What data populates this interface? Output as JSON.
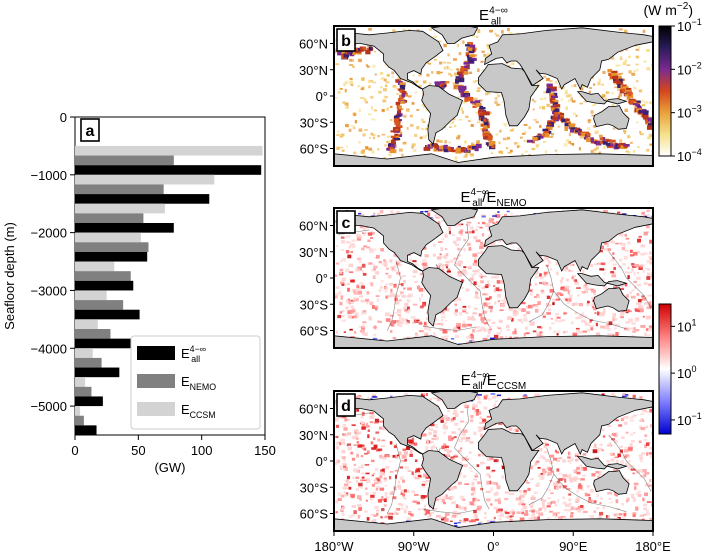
{
  "chart_data": [
    {
      "panel": "a",
      "type": "bar",
      "orientation": "horizontal",
      "xlabel": "(GW)",
      "ylabel": "Seafloor depth (m)",
      "xlim": [
        0,
        150
      ],
      "ylim": [
        -5500,
        0
      ],
      "x_ticks": [
        "0",
        "50",
        "100",
        "150"
      ],
      "x_tick_values": [
        0,
        50,
        100,
        150
      ],
      "y_ticks": [
        "0",
        "−1000",
        "−2000",
        "−3000",
        "−4000",
        "−5000"
      ],
      "y_tick_values": [
        0,
        -1000,
        -2000,
        -3000,
        -4000,
        -5000
      ],
      "depth_bins": [
        -750,
        -1250,
        -1750,
        -2250,
        -2750,
        -3250,
        -3750,
        -4250,
        -4750,
        -5250
      ],
      "series": [
        {
          "name": "E_all^4-∞",
          "label_main": "E",
          "label_sub": "all",
          "label_sup": "4−∞",
          "color": "#000000",
          "values": [
            147,
            106,
            78,
            57,
            46,
            51,
            44,
            35,
            22,
            17
          ]
        },
        {
          "name": "E_NEMO",
          "label_main": "E",
          "label_sub": "NEMO",
          "label_sup": "",
          "color": "#808080",
          "values": [
            78,
            70,
            54,
            58,
            44,
            38,
            28,
            21,
            13,
            7
          ]
        },
        {
          "name": "E_CCSM",
          "label_main": "E",
          "label_sub": "CCSM",
          "label_sup": "",
          "color": "#d3d3d3",
          "values": [
            148,
            110,
            71,
            52,
            31,
            25,
            18,
            14,
            8,
            4
          ]
        }
      ]
    },
    {
      "panel": "b",
      "type": "heatmap",
      "title_main": "E",
      "title_sub": "all",
      "title_sup": "4−∞",
      "colorbar_label": "(W m",
      "colorbar_label_sup": "−2",
      "colorbar_label_end": ")",
      "colorbar_scale": "log",
      "colorbar_range": [
        0.0001,
        0.1
      ],
      "colorbar_ticks": [
        {
          "base": "10",
          "exp": "−1"
        },
        {
          "base": "10",
          "exp": "−2"
        },
        {
          "base": "10",
          "exp": "−3"
        },
        {
          "base": "10",
          "exp": "−4"
        }
      ],
      "colormap": [
        "#ffffff",
        "#f6e08a",
        "#eaa23a",
        "#d4461c",
        "#7a2a90",
        "#2a1b5a",
        "#000000"
      ],
      "lat_ticks": [
        "60°N",
        "30°N",
        "0°",
        "30°S",
        "60°S"
      ]
    },
    {
      "panel": "c",
      "type": "heatmap",
      "title_main": "E",
      "title_sub": "all",
      "title_sup": "4−∞",
      "title_divisor_main": "E",
      "title_divisor_sub": "NEMO",
      "colorbar_scale": "log",
      "colorbar_range": [
        0.05,
        30
      ],
      "colorbar_ticks": [
        {
          "base": "10",
          "exp": "1"
        },
        {
          "base": "10",
          "exp": "0"
        },
        {
          "base": "10",
          "exp": "−1"
        }
      ],
      "colormap": [
        "#0000d0",
        "#8080ff",
        "#ffffff",
        "#ff8080",
        "#d00000"
      ],
      "lat_ticks": [
        "60°N",
        "30°N",
        "0°",
        "30°S",
        "60°S"
      ]
    },
    {
      "panel": "d",
      "type": "heatmap",
      "title_main": "E",
      "title_sub": "all",
      "title_sup": "4−∞",
      "title_divisor_main": "E",
      "title_divisor_sub": "CCSM",
      "lat_ticks": [
        "60°N",
        "30°N",
        "0°",
        "30°S",
        "60°S"
      ],
      "lon_ticks": [
        "180°W",
        "90°W",
        "0°",
        "90°E",
        "180°E"
      ]
    }
  ]
}
